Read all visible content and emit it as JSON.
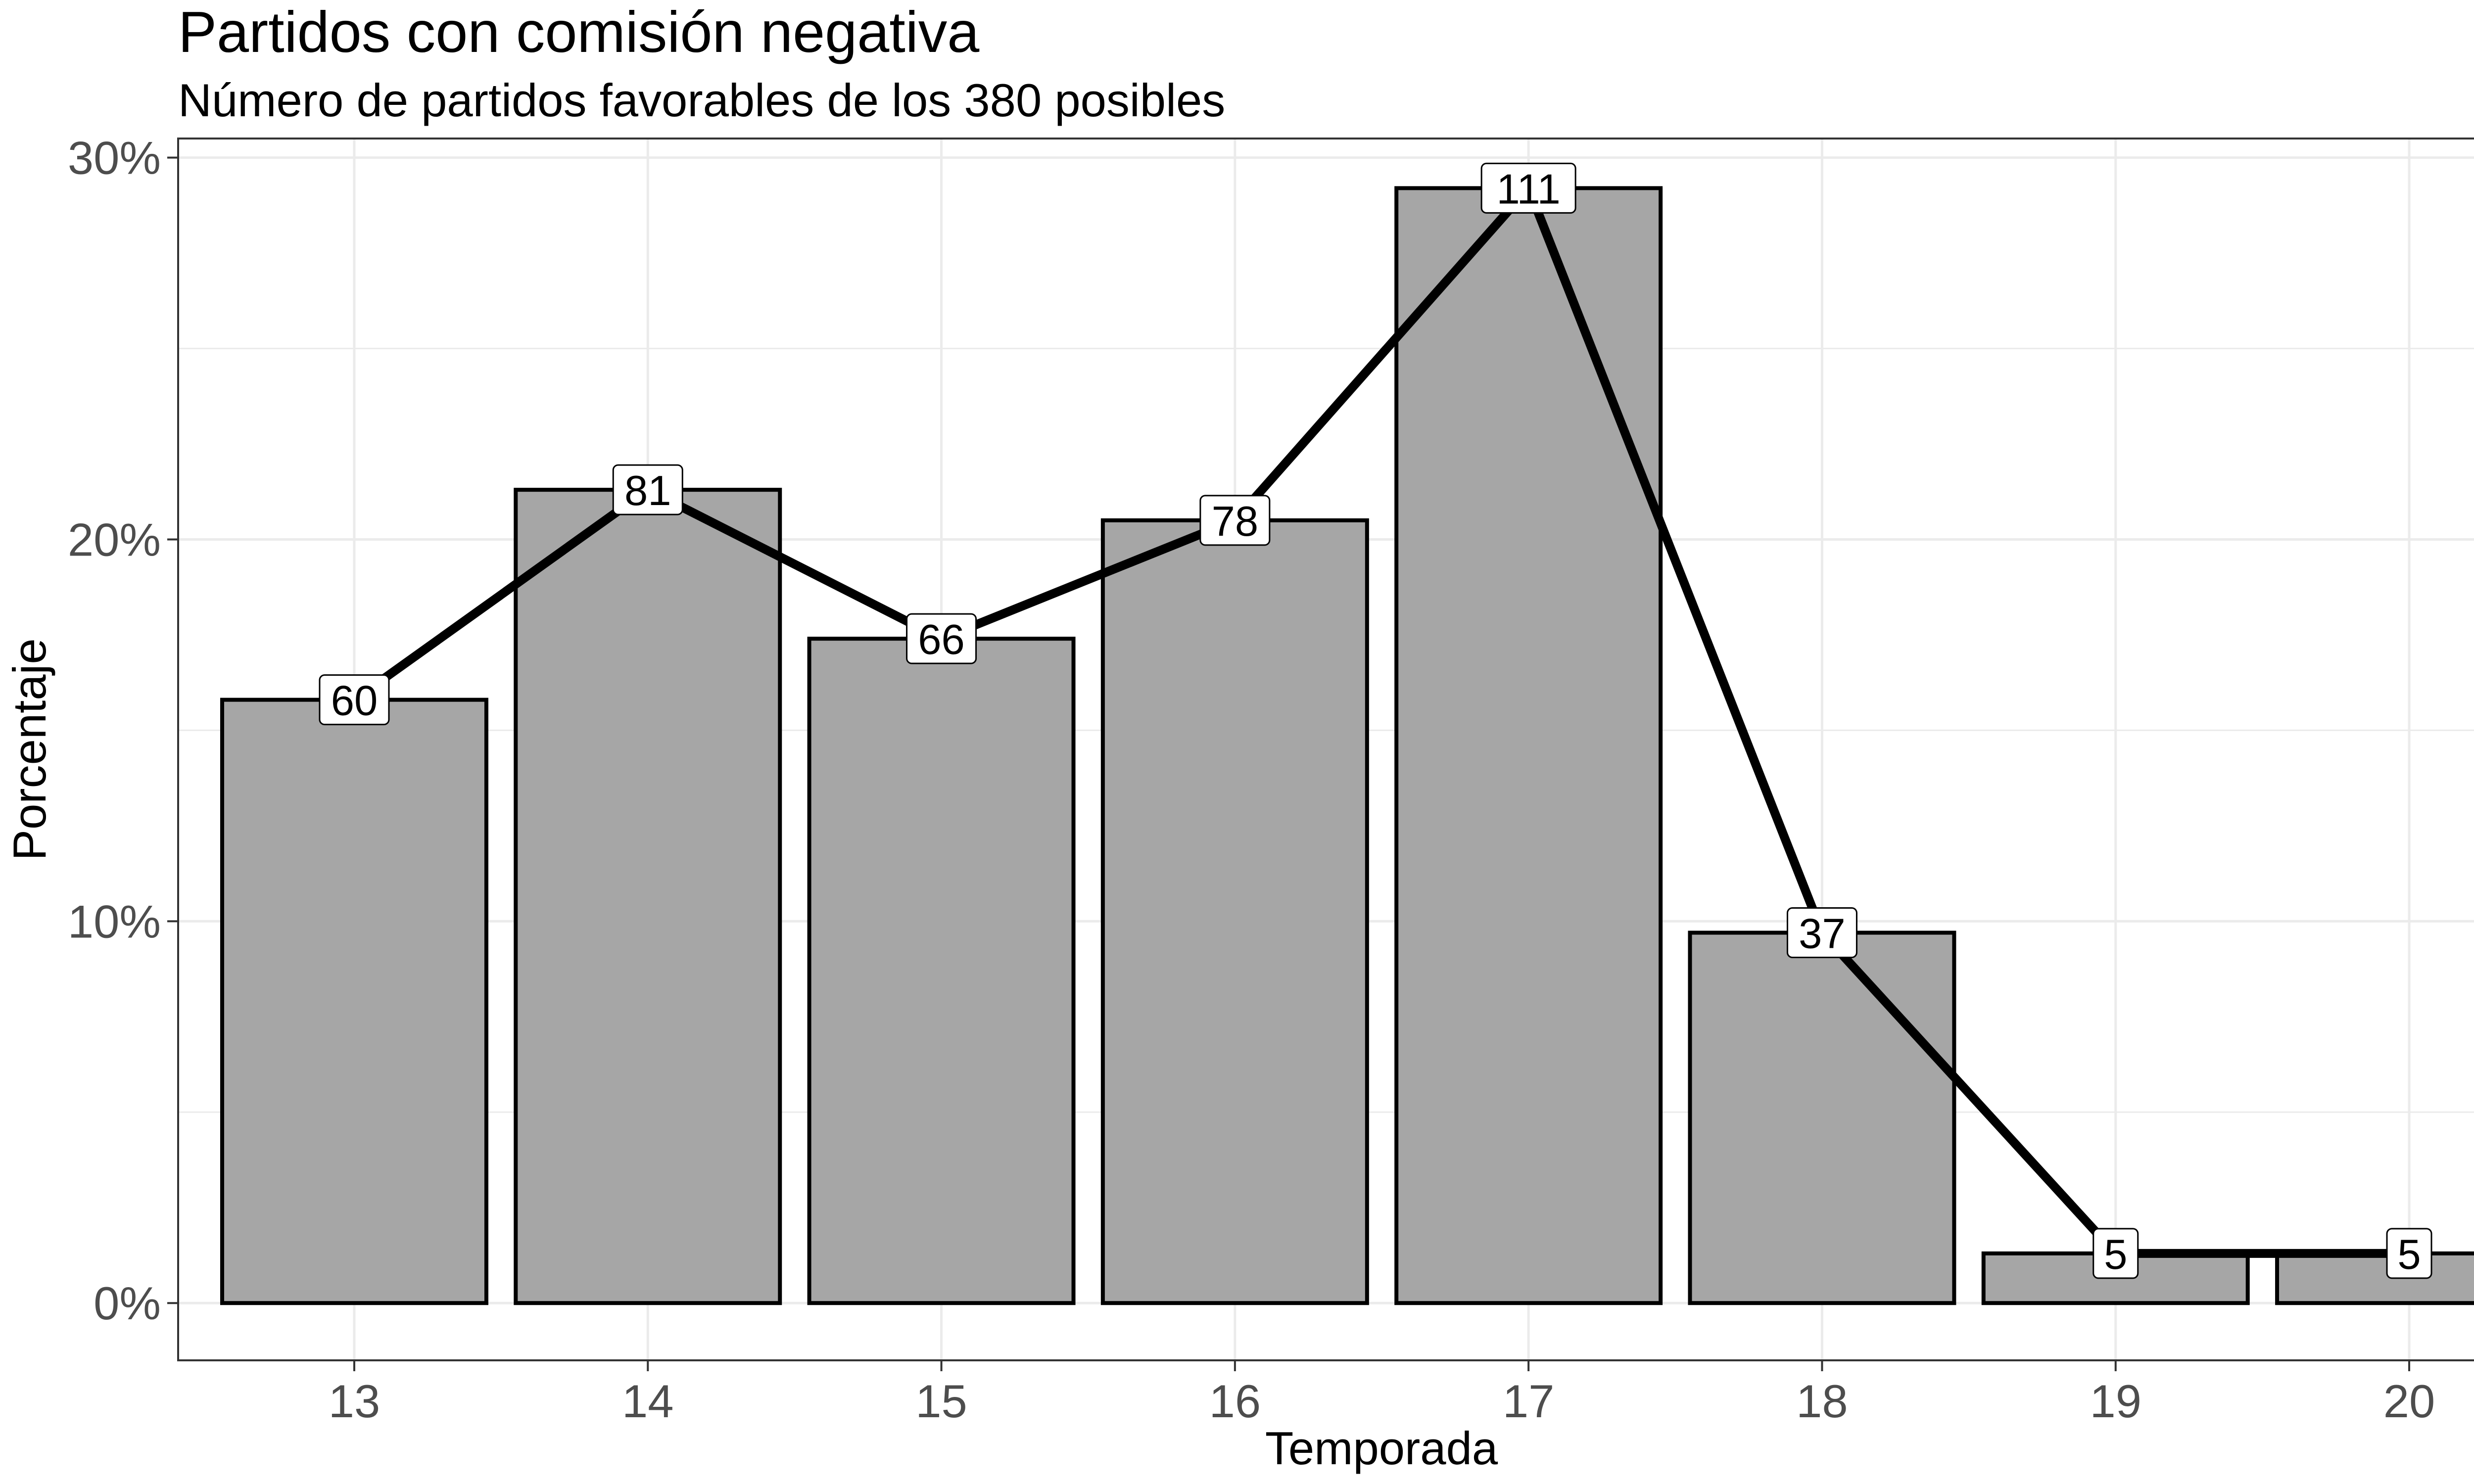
{
  "chart_data": {
    "type": "bar",
    "title": "Partidos con comisión negativa",
    "subtitle": "Número de partidos favorables de los 380 posibles",
    "xlabel": "Temporada",
    "ylabel": "Porcentaje",
    "categories": [
      "13",
      "14",
      "15",
      "16",
      "17",
      "18",
      "19",
      "20"
    ],
    "values": [
      15.8,
      21.3,
      17.4,
      20.5,
      29.2,
      9.7,
      1.3,
      1.3
    ],
    "labels": [
      "60",
      "81",
      "66",
      "78",
      "111",
      "37",
      "5",
      "5"
    ],
    "ylim": [
      -1.5,
      30.5
    ],
    "yticks": [
      0,
      10,
      20,
      30
    ],
    "ytick_labels": [
      "0%",
      "10%",
      "20%",
      "30%"
    ],
    "line_overlay": true,
    "grid": true,
    "colors": {
      "bar_fill": "#a6a6a6",
      "bar_stroke": "#000000",
      "line": "#000000",
      "grid": "#ebebeb",
      "panel_border": "#333333"
    }
  }
}
